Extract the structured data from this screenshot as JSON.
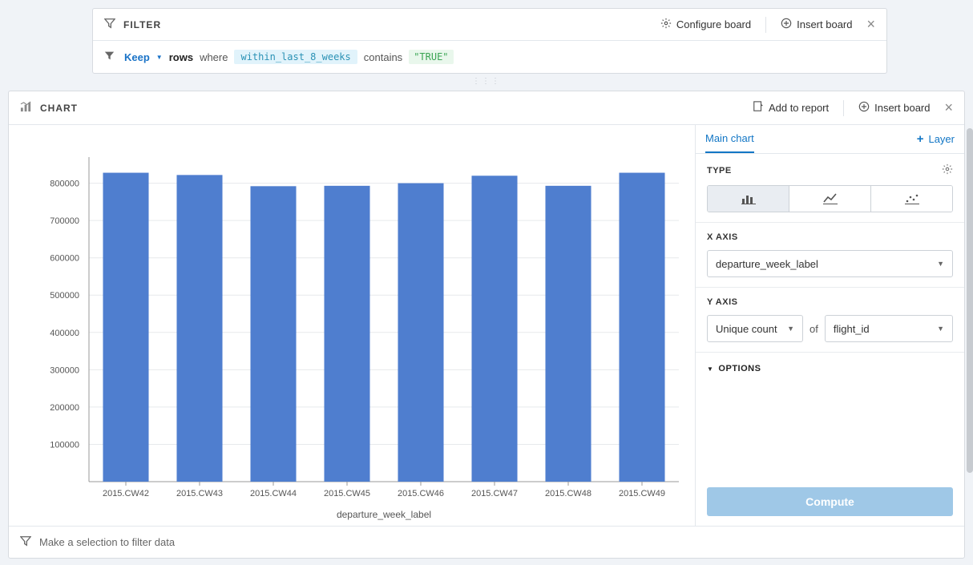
{
  "filter": {
    "label": "FILTER",
    "configure": "Configure board",
    "insert": "Insert board",
    "rule": {
      "keep": "Keep",
      "rows": "rows",
      "where": "where",
      "field": "within_last_8_weeks",
      "op": "contains",
      "value": "\"TRUE\""
    }
  },
  "chart_card": {
    "label": "CHART",
    "add_report": "Add to report",
    "insert": "Insert board"
  },
  "config": {
    "tab": "Main chart",
    "layer": "Layer",
    "type_label": "TYPE",
    "x_axis_label": "X AXIS",
    "x_axis_value": "departure_week_label",
    "y_axis_label": "Y AXIS",
    "y_agg": "Unique count",
    "y_of": "of",
    "y_col": "flight_id",
    "options": "OPTIONS",
    "compute": "Compute"
  },
  "chart": {
    "type": "bar",
    "categories": [
      "2015.CW42",
      "2015.CW43",
      "2015.CW44",
      "2015.CW45",
      "2015.CW46",
      "2015.CW47",
      "2015.CW48",
      "2015.CW49"
    ],
    "values": [
      828000,
      822000,
      792000,
      793000,
      800000,
      820000,
      793000,
      828000
    ],
    "bar_color": "#4f7ecf",
    "background_color": "#ffffff",
    "grid_color": "#e7e9ec",
    "axis_color": "#999999",
    "x_title": "departure_week_label",
    "ylim": [
      0,
      870000
    ],
    "y_ticks": [
      100000,
      200000,
      300000,
      400000,
      500000,
      600000,
      700000,
      800000
    ],
    "bar_width_ratio": 0.62,
    "label_fontsize": 11,
    "title_fontsize": 12
  },
  "footer": {
    "hint": "Make a selection to filter data"
  }
}
